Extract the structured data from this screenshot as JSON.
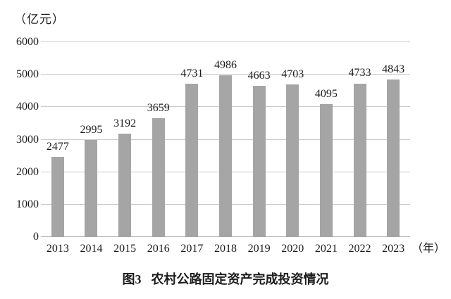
{
  "figure": {
    "unit_label": "（亿元）",
    "x_unit_label": "（年）",
    "caption_prefix": "图3",
    "caption_title": "农村公路固定资产完成投资情况"
  },
  "chart_data": {
    "type": "bar",
    "title": "图3 农村公路固定资产完成投资情况",
    "categories": [
      "2013",
      "2014",
      "2015",
      "2016",
      "2017",
      "2018",
      "2019",
      "2020",
      "2021",
      "2022",
      "2023"
    ],
    "values": [
      2477,
      2995,
      3192,
      3659,
      4731,
      4986,
      4663,
      4703,
      4095,
      4733,
      4843
    ],
    "xlabel": "（年）",
    "ylabel": "（亿元）",
    "ylim": [
      0,
      6000
    ],
    "yticks": [
      0,
      1000,
      2000,
      3000,
      4000,
      5000,
      6000
    ],
    "grid": true,
    "legend": "none",
    "data_labels": true,
    "bar_color": "#a5a5a5",
    "gridline_color": "#c9c9c9",
    "axisline_color": "#ababab",
    "text_color": "#1c1c1c"
  }
}
